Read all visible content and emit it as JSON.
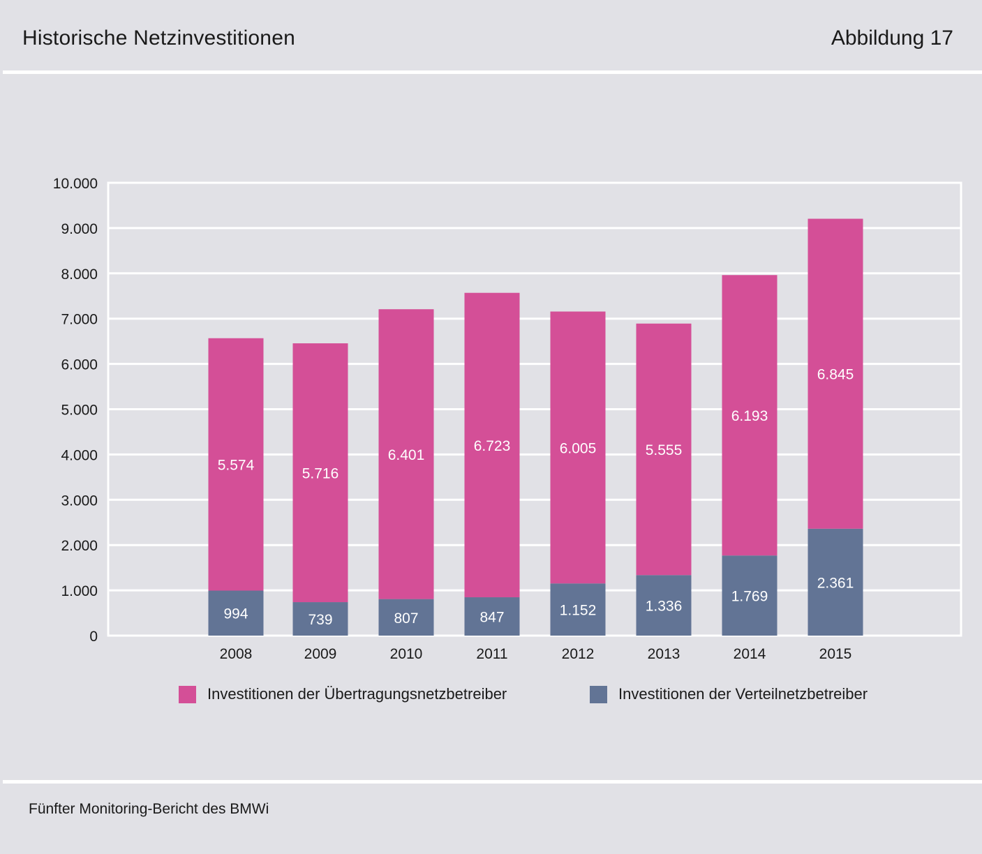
{
  "header": {
    "title": "Historische Netzinvestitionen",
    "figure_label": "Abbildung 17"
  },
  "footer": {
    "source": "Fünfter Monitoring-Bericht des BMWi"
  },
  "colors": {
    "uenb": "#d44f97",
    "vnb": "#627495",
    "background": "#e1e1e6",
    "grid": "#ffffff"
  },
  "chart_data": {
    "type": "bar",
    "stacked": true,
    "title": "Historische Netzinvestitionen",
    "xlabel": "",
    "ylabel": "",
    "ylim": [
      0,
      10000
    ],
    "yticks": [
      0,
      1000,
      2000,
      3000,
      4000,
      5000,
      6000,
      7000,
      8000,
      9000,
      10000
    ],
    "ytick_labels": [
      "0",
      "1.000",
      "2.000",
      "3.000",
      "4.000",
      "5.000",
      "6.000",
      "7.000",
      "8.000",
      "9.000",
      "10.000"
    ],
    "categories": [
      "2008",
      "2009",
      "2010",
      "2011",
      "2012",
      "2013",
      "2014",
      "2015"
    ],
    "grid": true,
    "legend_position": "bottom",
    "series": [
      {
        "name": "Investitionen der Verteilnetzbetreiber",
        "values": [
          994,
          739,
          807,
          847,
          1152,
          1336,
          1769,
          2361
        ],
        "labels": [
          "994",
          "739",
          "807",
          "847",
          "1.152",
          "1.336",
          "1.769",
          "2.361"
        ]
      },
      {
        "name": "Investitionen der Übertragungsnetzbetreiber",
        "values": [
          5574,
          5716,
          6401,
          6723,
          6005,
          5555,
          6193,
          6845
        ],
        "labels": [
          "5.574",
          "5.716",
          "6.401",
          "6.723",
          "6.005",
          "5.555",
          "6.193",
          "6.845"
        ]
      }
    ]
  }
}
